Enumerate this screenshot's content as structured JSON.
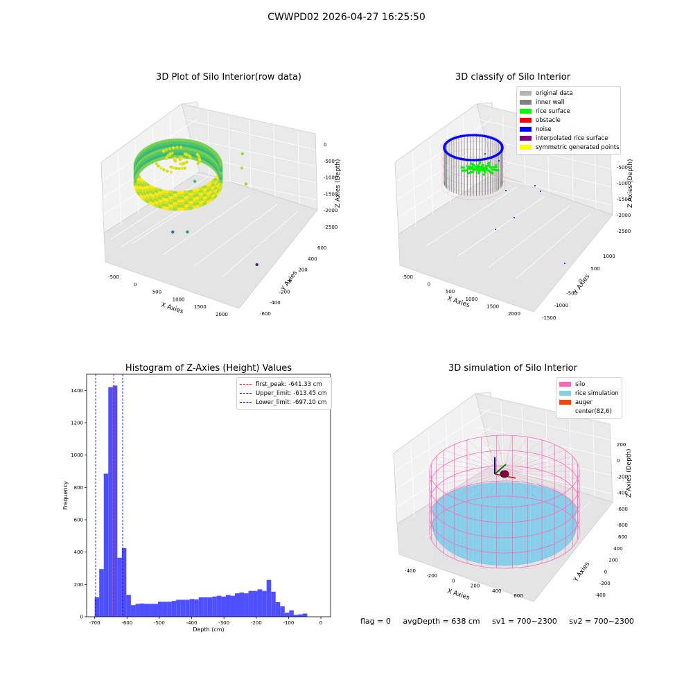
{
  "suptitle": "CWWPD02 2026-04-27 16:25:50",
  "status": {
    "flag": "flag = 0",
    "avg_depth": "avgDepth = 638 cm",
    "sv1": "sv1 = 700~2300",
    "sv2": "sv2 = 700~2300"
  },
  "colors": {
    "bar": "#4f4fff",
    "first_peak": "#ff0000",
    "limits": "#0000cc",
    "silo": "#ff69b4",
    "rice_sim": "#87ceeb",
    "auger": "#ff4500"
  },
  "chart_data": [
    {
      "type": "scatter3d",
      "title": "3D Plot of Silo Interior(row data)",
      "xlabel": "X Axies",
      "ylabel": "Y Axies",
      "zlabel": "Z Axies (Depth)",
      "x_ticks": [
        "-500",
        "0",
        "500",
        "1000",
        "1500",
        "2000"
      ],
      "y_ticks": [
        "-600",
        "-400",
        "-200",
        "0",
        "200",
        "400",
        "600"
      ],
      "z_ticks": [
        "0",
        "-500",
        "-1000",
        "-1500",
        "-2000",
        "-2500"
      ],
      "xlim": [
        -600,
        2100
      ],
      "ylim": [
        -650,
        650
      ],
      "zlim": [
        -2700,
        0
      ],
      "outlier_points": [
        {
          "x": 1100,
          "y": 200,
          "z": -1200,
          "color": "#8fd744"
        },
        {
          "x": 1150,
          "y": 150,
          "z": -1400,
          "color": "#b5de2b"
        },
        {
          "x": 1300,
          "y": 100,
          "z": -1600,
          "color": "#a0da39"
        },
        {
          "x": 500,
          "y": -100,
          "z": -1500,
          "color": "#3dbc74"
        },
        {
          "x": 600,
          "y": -300,
          "z": -2200,
          "color": "#1fa187"
        },
        {
          "x": 300,
          "y": -300,
          "z": -2300,
          "color": "#33638d"
        },
        {
          "x": 1900,
          "y": -200,
          "z": -2600,
          "color": "#482878"
        }
      ]
    },
    {
      "type": "scatter3d",
      "title": "3D classify of Silo Interior",
      "xlabel": "X Axies",
      "ylabel": "Y Axies",
      "zlabel": "Z Axies (Depth)",
      "x_ticks": [
        "-500",
        "0",
        "500",
        "1000",
        "1500",
        "2000"
      ],
      "y_ticks": [
        "-1500",
        "-1000",
        "-500",
        "0",
        "500",
        "1000"
      ],
      "z_ticks": [
        "-500",
        "-1000",
        "-1500",
        "-2000",
        "-2500"
      ],
      "legend": [
        {
          "label": "original data",
          "color": "#b4b4b4"
        },
        {
          "label": "inner wall",
          "color": "#808080"
        },
        {
          "label": "rice surface",
          "color": "#00ff00"
        },
        {
          "label": "obstacle",
          "color": "#ff0000"
        },
        {
          "label": "noise",
          "color": "#0000ff"
        },
        {
          "label": "interpolated rice surface",
          "color": "#800080"
        },
        {
          "label": "symmetric generated points",
          "color": "#ffff00"
        }
      ]
    },
    {
      "type": "bar",
      "title": "Histogram of Z-Axies (Height) Values",
      "xlabel": "Depth (cm)",
      "ylabel": "Frequency",
      "xlim": [
        -725,
        30
      ],
      "ylim": [
        0,
        1500
      ],
      "x_ticks": [
        "-700",
        "-600",
        "-500",
        "-400",
        "-300",
        "-200",
        "-100",
        "0"
      ],
      "y_ticks": [
        "0",
        "200",
        "400",
        "600",
        "800",
        "1000",
        "1200",
        "1400"
      ],
      "bin_start": -700,
      "bin_width": 14,
      "values": [
        120,
        295,
        885,
        1420,
        1430,
        365,
        425,
        135,
        72,
        80,
        82,
        80,
        80,
        80,
        93,
        93,
        93,
        98,
        105,
        105,
        105,
        110,
        107,
        120,
        120,
        120,
        125,
        130,
        125,
        135,
        130,
        145,
        150,
        145,
        160,
        160,
        170,
        160,
        228,
        155,
        90,
        65,
        25,
        40,
        12,
        15,
        20
      ],
      "vlines": [
        {
          "x": -641.33,
          "label": "first_peak: -641.33 cm",
          "color": "#ff0000"
        },
        {
          "x": -613.45,
          "label": "Upper_limit: -613.45 cm",
          "color": "#0000cc"
        },
        {
          "x": -697.1,
          "label": "Lower_limit: -697.10 cm",
          "color": "#0000cc"
        }
      ]
    },
    {
      "type": "surface3d",
      "title": "3D simulation of Silo Interior",
      "xlabel": "X Axies",
      "ylabel": "Y Axies",
      "zlabel": "Z Axies (Depth)",
      "x_ticks": [
        "-400",
        "-200",
        "0",
        "200",
        "400",
        "600"
      ],
      "y_ticks": [
        "-400",
        "-200",
        "0",
        "200",
        "400",
        "600"
      ],
      "z_ticks": [
        "200",
        "0",
        "-200",
        "-400",
        "-600",
        "-800"
      ],
      "legend": [
        {
          "label": "silo",
          "color": "#ff69b4"
        },
        {
          "label": "rice simulation",
          "color": "#87ceeb"
        },
        {
          "label": "auger",
          "color": "#ff4500"
        },
        {
          "label": "center(82,6)",
          "color": ""
        }
      ]
    }
  ]
}
